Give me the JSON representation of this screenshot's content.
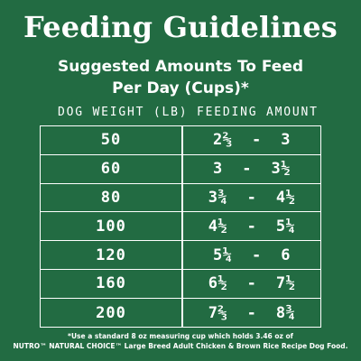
{
  "title": "Feeding Guidelines",
  "subtitle": {
    "line1": "Suggested Amounts To Feed",
    "line2": "Per Day (Cups)*"
  },
  "table": {
    "headers": {
      "weight": "DOG WEIGHT (LB)",
      "amount": "FEEDING AMOUNT"
    },
    "rows": [
      {
        "weight": "50",
        "amount": "2⅔  -  3"
      },
      {
        "weight": "60",
        "amount": "3  -  3½"
      },
      {
        "weight": "80",
        "amount": "3¾  -  4½"
      },
      {
        "weight": "100",
        "amount": "4½  -  5¼"
      },
      {
        "weight": "120",
        "amount": "5¼  -  6"
      },
      {
        "weight": "160",
        "amount": "6½  -  7½"
      },
      {
        "weight": "200",
        "amount": "7⅔  -  8¾"
      }
    ]
  },
  "footnote": {
    "line1": "*Use a standard 8 oz measuring cup which holds 3.46 oz of",
    "line2": "NUTRO™ NATURAL CHOICE™ Large Breed Adult Chicken & Brown Rice Recipe Dog Food."
  },
  "colors": {
    "background": "#226b42",
    "text": "#ffffff"
  }
}
